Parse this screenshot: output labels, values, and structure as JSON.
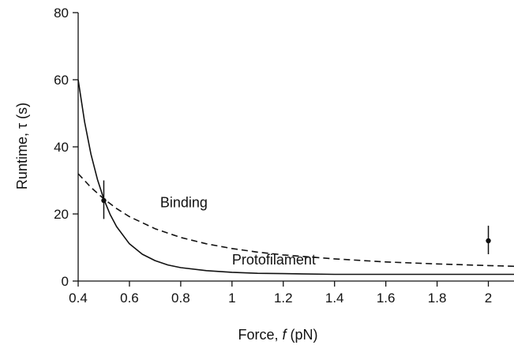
{
  "chart_data": {
    "type": "line",
    "xlabel": {
      "prefix": "Force, ",
      "symbol": "f",
      "suffix": " (pN)"
    },
    "ylabel": "Runtime, τ (s)",
    "xlim": [
      0.4,
      2.1
    ],
    "ylim": [
      0,
      80
    ],
    "x_ticks": [
      0.4,
      0.6,
      0.8,
      1,
      1.2,
      1.4,
      1.6,
      1.8,
      2
    ],
    "x_tick_labels": [
      "0.4",
      "0.6",
      "0.8",
      "1",
      "1.2",
      "1.4",
      "1.6",
      "1.8",
      "2"
    ],
    "y_ticks": [
      0,
      20,
      40,
      60,
      80
    ],
    "y_tick_labels": [
      "0",
      "20",
      "40",
      "60",
      "80"
    ],
    "grid": false,
    "series": [
      {
        "name": "Protofilament",
        "style": "solid",
        "color": "#111111",
        "x": [
          0.4,
          0.425,
          0.45,
          0.475,
          0.5,
          0.525,
          0.55,
          0.6,
          0.65,
          0.7,
          0.75,
          0.8,
          0.9,
          1.0,
          1.1,
          1.2,
          1.4,
          1.6,
          1.8,
          2.0,
          2.1
        ],
        "y": [
          60,
          47.5,
          37.8,
          30.3,
          24.4,
          19.8,
          16.2,
          11.1,
          8.0,
          6.1,
          4.8,
          4.0,
          3.1,
          2.6,
          2.3,
          2.2,
          2.0,
          2.0,
          2.0,
          2.0,
          2.0
        ]
      },
      {
        "name": "Binding",
        "style": "dashed",
        "color": "#111111",
        "x": [
          0.4,
          0.45,
          0.5,
          0.55,
          0.6,
          0.7,
          0.8,
          0.9,
          1.0,
          1.1,
          1.2,
          1.4,
          1.6,
          1.8,
          2.0,
          2.1
        ],
        "y": [
          32.0,
          27.9,
          24.5,
          21.6,
          19.2,
          15.6,
          13.0,
          11.1,
          9.7,
          8.6,
          7.8,
          6.6,
          5.7,
          5.1,
          4.6,
          4.4
        ]
      }
    ],
    "points": [
      {
        "x": 0.5,
        "y": 24,
        "yerr_low": 18.5,
        "yerr_high": 30
      },
      {
        "x": 2.0,
        "y": 12,
        "yerr_low": 8,
        "yerr_high": 16.5
      }
    ],
    "annotations": [
      {
        "text": "Binding",
        "x": 0.72,
        "y": 22
      },
      {
        "text": "Protofilament",
        "x": 1.0,
        "y": 5
      }
    ]
  }
}
